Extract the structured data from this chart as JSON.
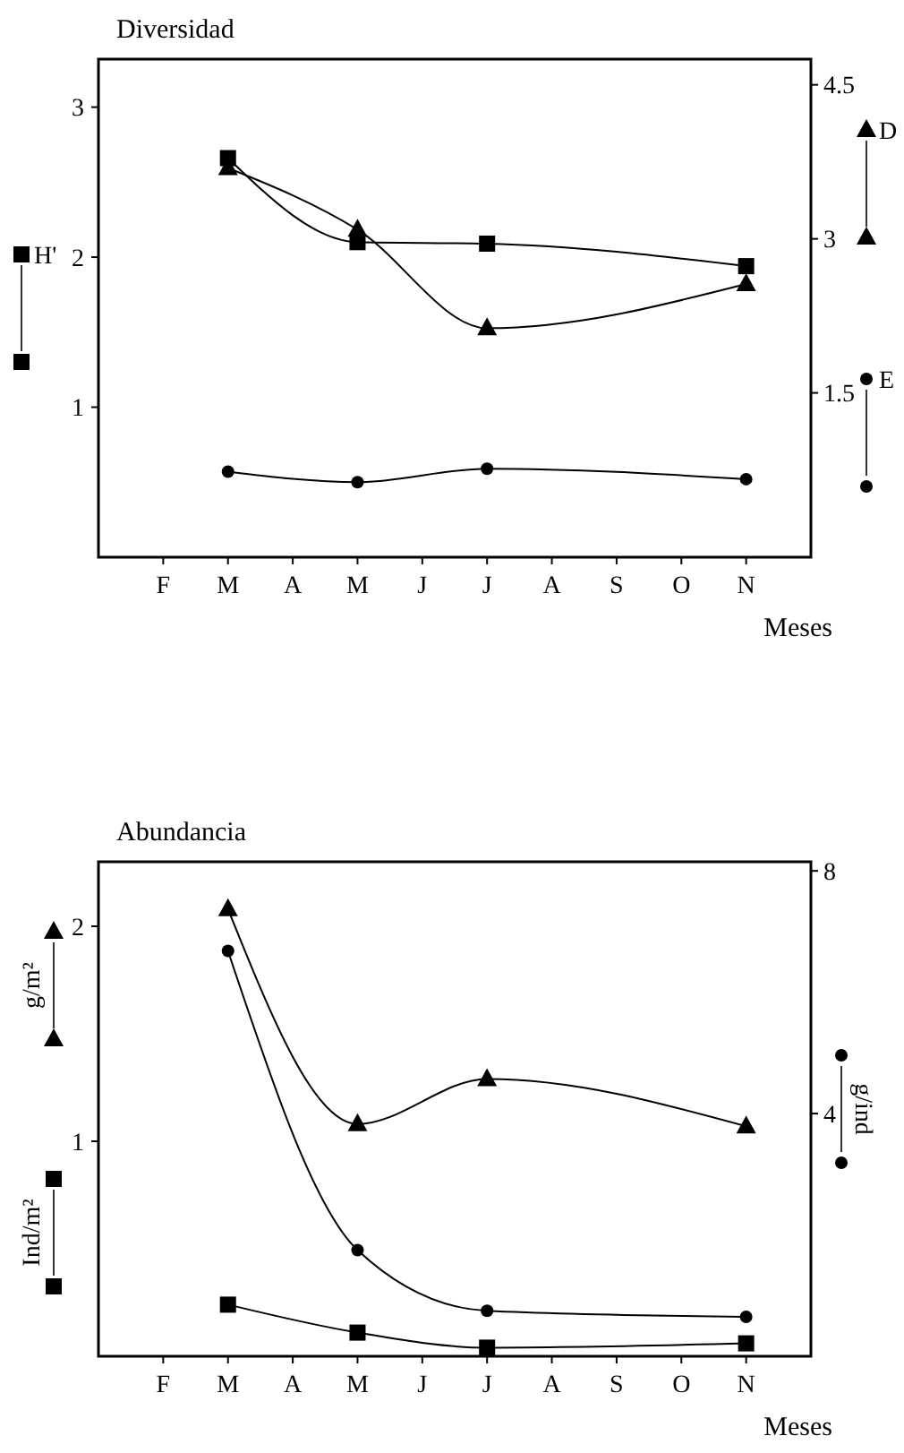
{
  "chart_data": [
    {
      "type": "line",
      "title": "Diversidad",
      "xlabel": "Meses",
      "categories": [
        null,
        "F",
        "M",
        "A",
        "M",
        "J",
        "J",
        "A",
        "S",
        "O",
        "N",
        null
      ],
      "ylim": [
        0,
        3.32
      ],
      "yticks": [
        1,
        2,
        3
      ],
      "y2lim": [
        -0.1,
        4.75
      ],
      "y2ticks": [
        {
          "value": 1.5,
          "label": "1.5"
        },
        {
          "value": 3,
          "label": "3"
        },
        {
          "value": 4.5,
          "label": "4.5"
        }
      ],
      "legend": "right",
      "series": [
        {
          "name": "H'",
          "color": "#000000",
          "marker": "square",
          "values": [
            null,
            null,
            2.66,
            null,
            2.1,
            null,
            2.09,
            null,
            null,
            null,
            1.94,
            null
          ]
        },
        {
          "name": "D",
          "color": "#000000",
          "marker": "triangle",
          "axis": "y2",
          "values": [
            null,
            null,
            3.69,
            null,
            3.09,
            null,
            2.13,
            null,
            null,
            null,
            2.56,
            null
          ]
        },
        {
          "name": "E",
          "color": "#000000",
          "marker": "circle",
          "values": [
            null,
            null,
            0.57,
            null,
            0.5,
            null,
            0.59,
            null,
            null,
            null,
            0.52,
            null
          ]
        }
      ]
    },
    {
      "type": "line",
      "title": "Abundancia",
      "xlabel": "Meses",
      "categories": [
        null,
        "F",
        "M",
        "A",
        "M",
        "J",
        "J",
        "A",
        "S",
        "O",
        "N",
        null
      ],
      "ylim": [
        0,
        2.3
      ],
      "yticks": [
        1,
        2
      ],
      "y2lim": [
        0,
        8.15
      ],
      "y2ticks": [
        4,
        8
      ],
      "legend": "left",
      "series": [
        {
          "name": "g/ind",
          "color": "#000000",
          "marker": "circle",
          "axis": "y2",
          "values": [
            null,
            null,
            6.68,
            null,
            1.75,
            null,
            0.75,
            null,
            null,
            null,
            0.65,
            null
          ]
        },
        {
          "name": "g/m²",
          "color": "#000000",
          "marker": "triangle",
          "values": [
            null,
            null,
            2.08,
            null,
            1.08,
            null,
            1.29,
            null,
            null,
            null,
            1.07,
            null
          ]
        },
        {
          "name": "Ind/m²",
          "color": "#000000",
          "marker": "square",
          "values": [
            null,
            null,
            0.24,
            null,
            0.11,
            null,
            0.04,
            null,
            null,
            null,
            0.06,
            null
          ]
        }
      ]
    }
  ]
}
